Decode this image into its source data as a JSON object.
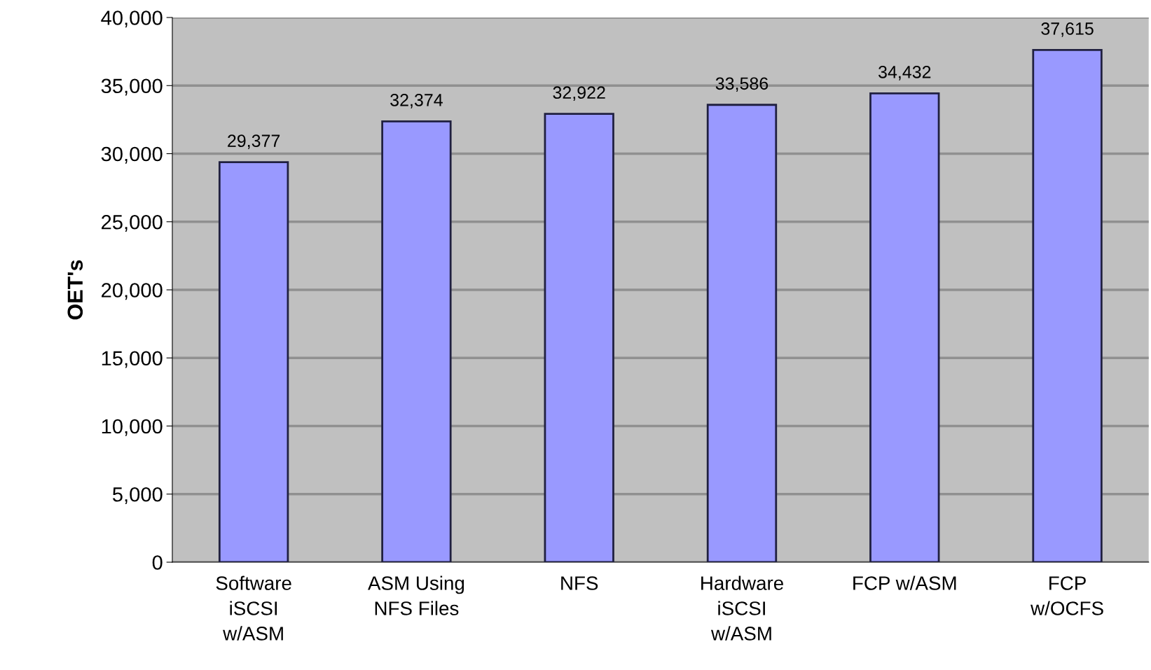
{
  "chart_data": {
    "type": "bar",
    "ylabel": "OET's",
    "categories": [
      "Software\niSCSI\nw/ASM",
      "ASM Using\nNFS Files",
      "NFS",
      "Hardware\niSCSI\nw/ASM",
      "FCP w/ASM",
      "FCP\nw/OCFS"
    ],
    "values": [
      29377,
      32374,
      32922,
      33586,
      34432,
      37615
    ],
    "color": "#9999ff",
    "data_labels": true,
    "value_labels": [
      "29,377",
      "32,374",
      "32,922",
      "33,586",
      "34,432",
      "37,615"
    ],
    "ylim": [
      0,
      40000
    ],
    "yticks": [
      {
        "value": 0,
        "label": "0"
      },
      {
        "value": 5000,
        "label": "5,000"
      },
      {
        "value": 10000,
        "label": "10,000"
      },
      {
        "value": 15000,
        "label": "15,000"
      },
      {
        "value": 20000,
        "label": "20,000"
      },
      {
        "value": 25000,
        "label": "25,000"
      },
      {
        "value": 30000,
        "label": "30,000"
      },
      {
        "value": 35000,
        "label": "35,000"
      },
      {
        "value": 40000,
        "label": "40,000"
      }
    ],
    "grid": "y",
    "legend": false
  }
}
